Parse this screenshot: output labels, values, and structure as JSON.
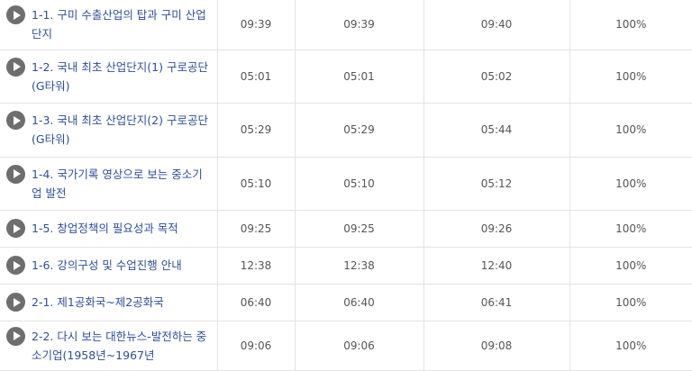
{
  "rows": [
    {
      "title": "1-1. 구미 수출산업의 탑과 구미 산업단지",
      "t1": "09:39",
      "t2": "09:39",
      "t3": "09:40",
      "pct": "100%"
    },
    {
      "title": "1-2. 국내 최초 산업단지(1) 구로공단(G타워)",
      "t1": "05:01",
      "t2": "05:01",
      "t3": "05:02",
      "pct": "100%"
    },
    {
      "title": "1-3. 국내 최초 산업단지(2) 구로공단(G타워)",
      "t1": "05:29",
      "t2": "05:29",
      "t3": "05:44",
      "pct": "100%"
    },
    {
      "title": "1-4. 국가기록 영상으로 보는 중소기업 발전",
      "t1": "05:10",
      "t2": "05:10",
      "t3": "05:12",
      "pct": "100%"
    },
    {
      "title": "1-5. 창업정책의 필요성과 목적",
      "t1": "09:25",
      "t2": "09:25",
      "t3": "09:26",
      "pct": "100%"
    },
    {
      "title": "1-6. 강의구성 및 수업진행 안내",
      "t1": "12:38",
      "t2": "12:38",
      "t3": "12:40",
      "pct": "100%"
    },
    {
      "title": "2-1. 제1공화국~제2공화국",
      "t1": "06:40",
      "t2": "06:40",
      "t3": "06:41",
      "pct": "100%"
    },
    {
      "title": "2-2. 다시 보는 대한뉴스-발전하는 중소기업(1958년~1967년",
      "t1": "09:06",
      "t2": "09:06",
      "t3": "09:08",
      "pct": "100%"
    }
  ]
}
